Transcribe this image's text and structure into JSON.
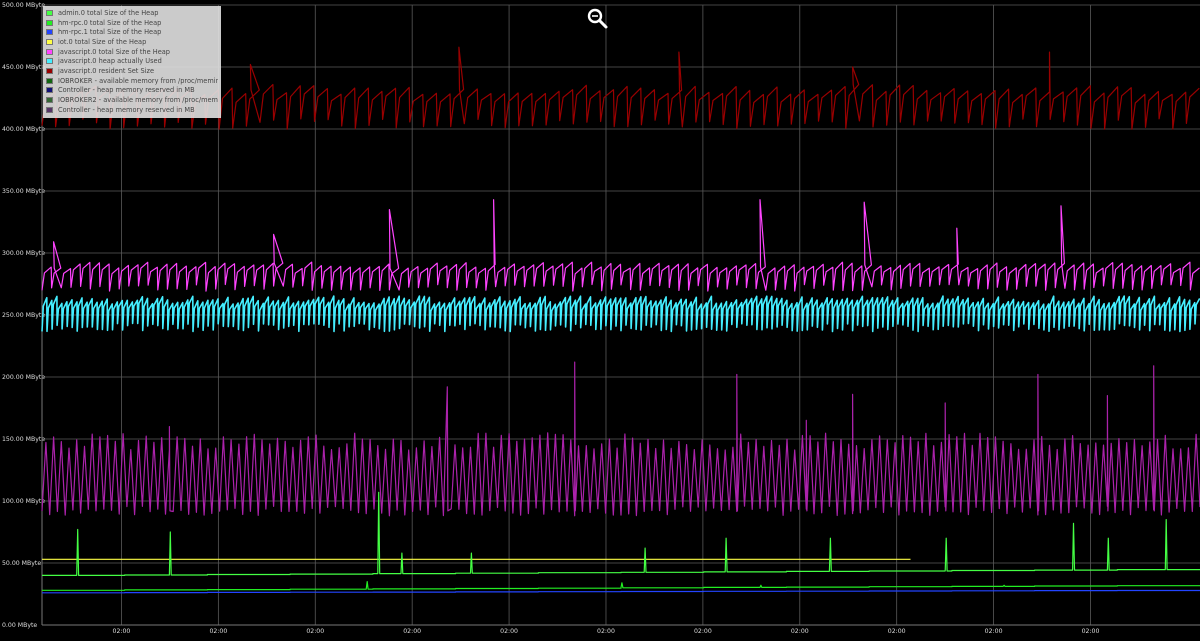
{
  "chart_data": {
    "type": "line",
    "title": "",
    "xlabel": "",
    "ylabel": "",
    "ylim": [
      0,
      500
    ],
    "y_unit": "MByte",
    "y_ticks": [
      "0.00 MByte",
      "50.00 MByte",
      "100.00 MByte",
      "150.00 MByte",
      "200.00 MByte",
      "250.00 MByte",
      "300.00 MByte",
      "350.00 MByte",
      "400.00 MByte",
      "450.00 MByte",
      "500.00 MByte"
    ],
    "x_ticks": [
      "02:00",
      "02:00",
      "02:00",
      "02:00",
      "02:00",
      "02:00",
      "02:00",
      "02:00",
      "02:00",
      "02:00",
      "02:00"
    ],
    "grid": true,
    "legend_position": "top-left",
    "series": [
      {
        "name": "admin.0 total Size of the Heap",
        "color": "#44ff44",
        "pattern": "step",
        "base": 40,
        "end": 45,
        "spikes": [
          [
            0.03,
            77
          ],
          [
            0.11,
            75
          ],
          [
            0.29,
            107
          ],
          [
            0.31,
            58
          ],
          [
            0.37,
            58
          ],
          [
            0.52,
            62
          ],
          [
            0.59,
            70
          ],
          [
            0.68,
            70
          ],
          [
            0.78,
            70
          ],
          [
            0.89,
            82
          ],
          [
            0.92,
            70
          ],
          [
            0.97,
            85
          ]
        ]
      },
      {
        "name": "hm-rpc.0 total Size of the Heap",
        "color": "#22ee22",
        "pattern": "step",
        "base": 28,
        "end": 32,
        "spikes": [
          [
            0.28,
            35
          ],
          [
            0.5,
            34
          ],
          [
            0.62,
            32
          ],
          [
            0.83,
            32
          ]
        ]
      },
      {
        "name": "hm-rpc.1 total Size of the Heap",
        "color": "#2244ff",
        "pattern": "step",
        "base": 26,
        "end": 28,
        "spikes": []
      },
      {
        "name": "iot.0 total Size of the Heap",
        "color": "#ffff44",
        "pattern": "flat",
        "base": 53,
        "end": 53,
        "x_end": 0.75,
        "spikes": []
      },
      {
        "name": "javascript.0 total Size of the Heap",
        "color": "#ff44ff",
        "pattern": "saw",
        "low": 272,
        "high": 290,
        "cycles": 120,
        "spikes": [
          [
            0.01,
            309
          ],
          [
            0.2,
            315
          ],
          [
            0.3,
            335
          ],
          [
            0.39,
            343
          ],
          [
            0.62,
            343
          ],
          [
            0.71,
            341
          ],
          [
            0.79,
            320
          ],
          [
            0.88,
            338
          ]
        ]
      },
      {
        "name": "javascript.0 heap actually Used",
        "color": "#44eeff",
        "pattern": "saw",
        "low": 240,
        "high": 262,
        "cycles": 230,
        "spikes": []
      },
      {
        "name": "javascript.0 resident Set Size",
        "color": "#990000",
        "pattern": "saw",
        "low": 404,
        "high": 432,
        "cycles": 85,
        "spikes": [
          [
            0.18,
            452
          ],
          [
            0.36,
            466
          ],
          [
            0.55,
            462
          ],
          [
            0.7,
            450
          ],
          [
            0.87,
            462
          ]
        ]
      },
      {
        "name": "IOBROKER - available memory from /proc/meminfo in MB",
        "color": "#116611",
        "pattern": "none",
        "spikes": []
      },
      {
        "name": "Controller - heap memory reserved in MB",
        "color": "#111177",
        "pattern": "none",
        "spikes": []
      },
      {
        "name": "IOBROKER2 - available memory from /proc/meminfo in MB",
        "color": "#336633",
        "pattern": "none",
        "spikes": []
      },
      {
        "name": "Controller - heap memory reserved in MB",
        "color": "#553366",
        "pattern": "none",
        "spikes": []
      },
      {
        "name": "",
        "color": "#aa22aa",
        "pattern": "noise",
        "low": 88,
        "high": 155,
        "cycles": 150,
        "spikes": [
          [
            0.11,
            160
          ],
          [
            0.35,
            192
          ],
          [
            0.46,
            212
          ],
          [
            0.6,
            202
          ],
          [
            0.66,
            165
          ],
          [
            0.7,
            186
          ],
          [
            0.78,
            179
          ],
          [
            0.86,
            202
          ],
          [
            0.92,
            185
          ],
          [
            0.96,
            209
          ]
        ]
      }
    ]
  },
  "icons": {
    "zoom": "zoom-reset-icon"
  }
}
